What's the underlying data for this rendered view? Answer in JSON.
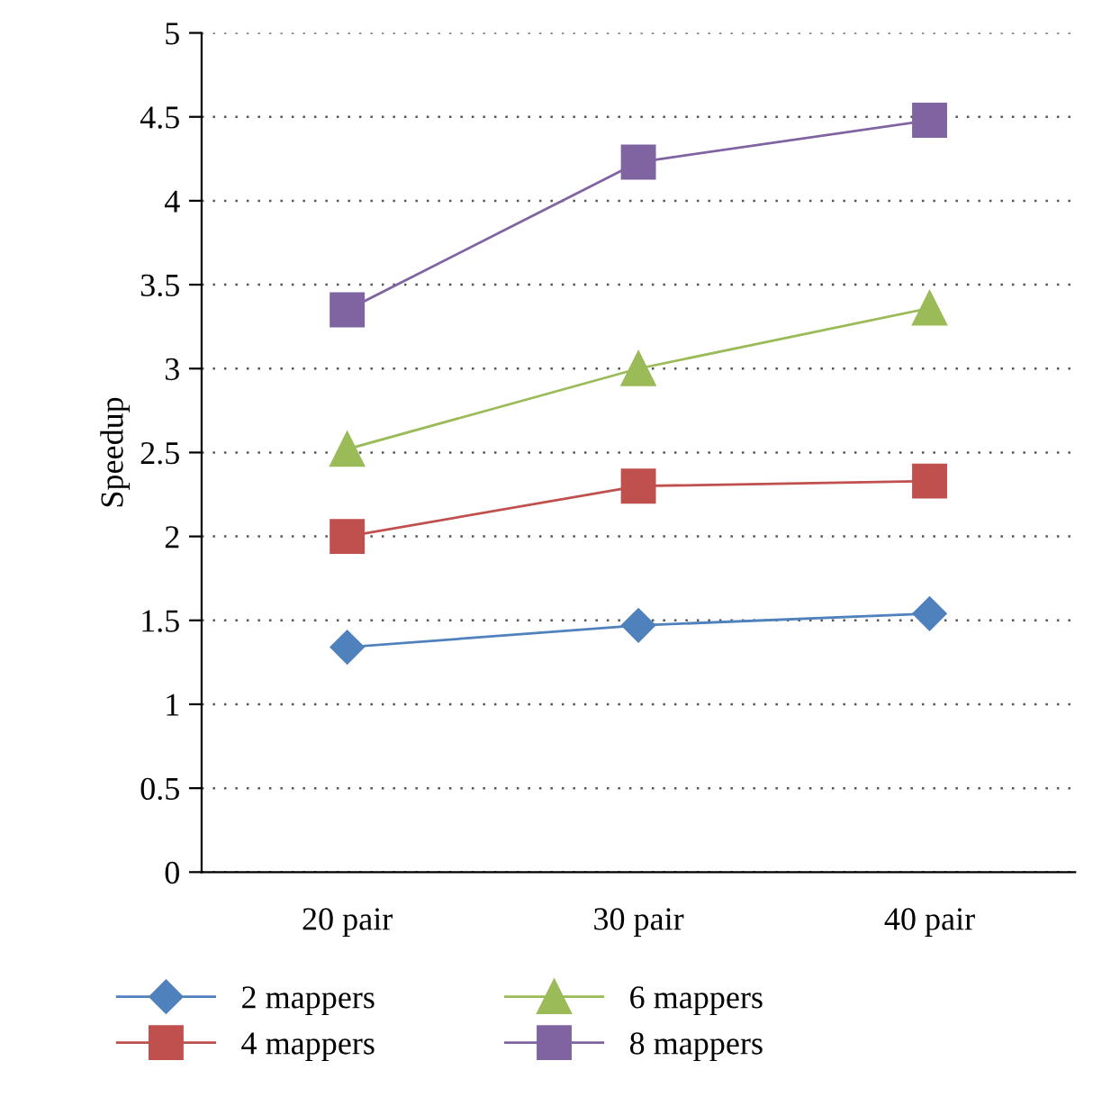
{
  "chart_data": {
    "type": "line",
    "ylabel": "Speedup",
    "categories": [
      "20 pair",
      "30 pair",
      "40 pair"
    ],
    "series": [
      {
        "name": "2 mappers",
        "color": "#4f81bd",
        "marker": "diamond",
        "values": [
          1.34,
          1.47,
          1.54
        ]
      },
      {
        "name": "4 mappers",
        "color": "#c0504d",
        "marker": "square",
        "values": [
          2.0,
          2.3,
          2.33
        ]
      },
      {
        "name": "6 mappers",
        "color": "#9bbb59",
        "marker": "triangle",
        "values": [
          2.52,
          3.0,
          3.36
        ]
      },
      {
        "name": "8 mappers",
        "color": "#8064a2",
        "marker": "square",
        "values": [
          3.35,
          4.23,
          4.48
        ]
      }
    ],
    "ylim": [
      0,
      5
    ],
    "yticks": [
      0,
      0.5,
      1,
      1.5,
      2,
      2.5,
      3,
      3.5,
      4,
      4.5,
      5
    ],
    "grid": "y",
    "legend": "bottom"
  }
}
